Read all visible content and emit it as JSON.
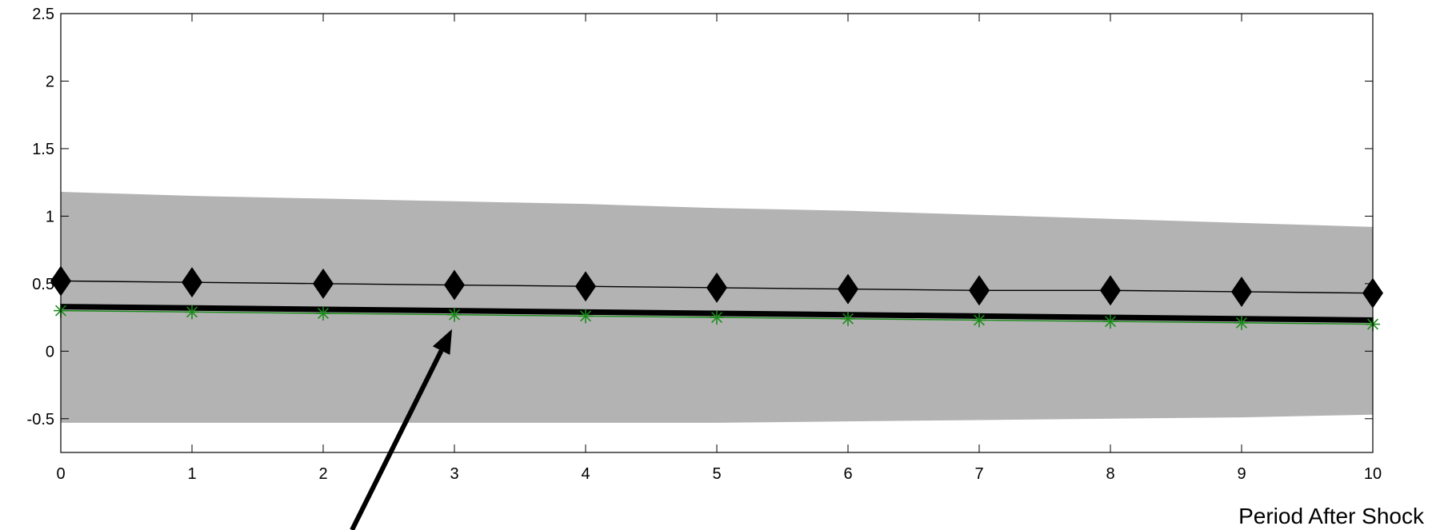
{
  "chart_data": {
    "type": "line",
    "title": "",
    "xlabel": "Period After Shock",
    "ylabel": "",
    "x": [
      0,
      1,
      2,
      3,
      4,
      5,
      6,
      7,
      8,
      9,
      10
    ],
    "xlim": [
      0,
      10
    ],
    "ylim": [
      -0.75,
      2.5
    ],
    "xticks": [
      0,
      1,
      2,
      3,
      4,
      5,
      6,
      7,
      8,
      9,
      10
    ],
    "yticks": [
      -0.5,
      0,
      0.5,
      1,
      1.5,
      2,
      2.5
    ],
    "xtick_labels": [
      "0",
      "1",
      "2",
      "3",
      "4",
      "5",
      "6",
      "7",
      "8",
      "9",
      "10"
    ],
    "ytick_labels": [
      "-0.5",
      "0",
      "0.5",
      "1",
      "1.5",
      "2",
      "2.5"
    ],
    "grid": false,
    "band": {
      "upper": [
        1.18,
        1.15,
        1.13,
        1.11,
        1.09,
        1.06,
        1.04,
        1.01,
        0.98,
        0.95,
        0.92
      ],
      "lower": [
        -0.53,
        -0.53,
        -0.53,
        -0.53,
        -0.53,
        -0.53,
        -0.52,
        -0.51,
        -0.5,
        -0.49,
        -0.47
      ],
      "color": "#b3b3b3"
    },
    "series": [
      {
        "values": [
          0.33,
          0.32,
          0.31,
          0.3,
          0.29,
          0.28,
          0.27,
          0.26,
          0.25,
          0.24,
          0.23
        ],
        "color": "#000000",
        "marker": "none",
        "style": "thick-line"
      },
      {
        "values": [
          0.52,
          0.51,
          0.5,
          0.49,
          0.48,
          0.47,
          0.46,
          0.45,
          0.45,
          0.44,
          0.43
        ],
        "color": "#000000",
        "marker": "diamond",
        "style": "thin-line"
      },
      {
        "values": [
          0.3,
          0.29,
          0.28,
          0.27,
          0.26,
          0.25,
          0.24,
          0.23,
          0.22,
          0.21,
          0.2
        ],
        "color": "#1a8c1a",
        "marker": "star",
        "style": "thin-line"
      }
    ],
    "annotation": {
      "type": "arrow",
      "points_to": [
        3,
        0.27
      ],
      "color": "#000000"
    }
  }
}
